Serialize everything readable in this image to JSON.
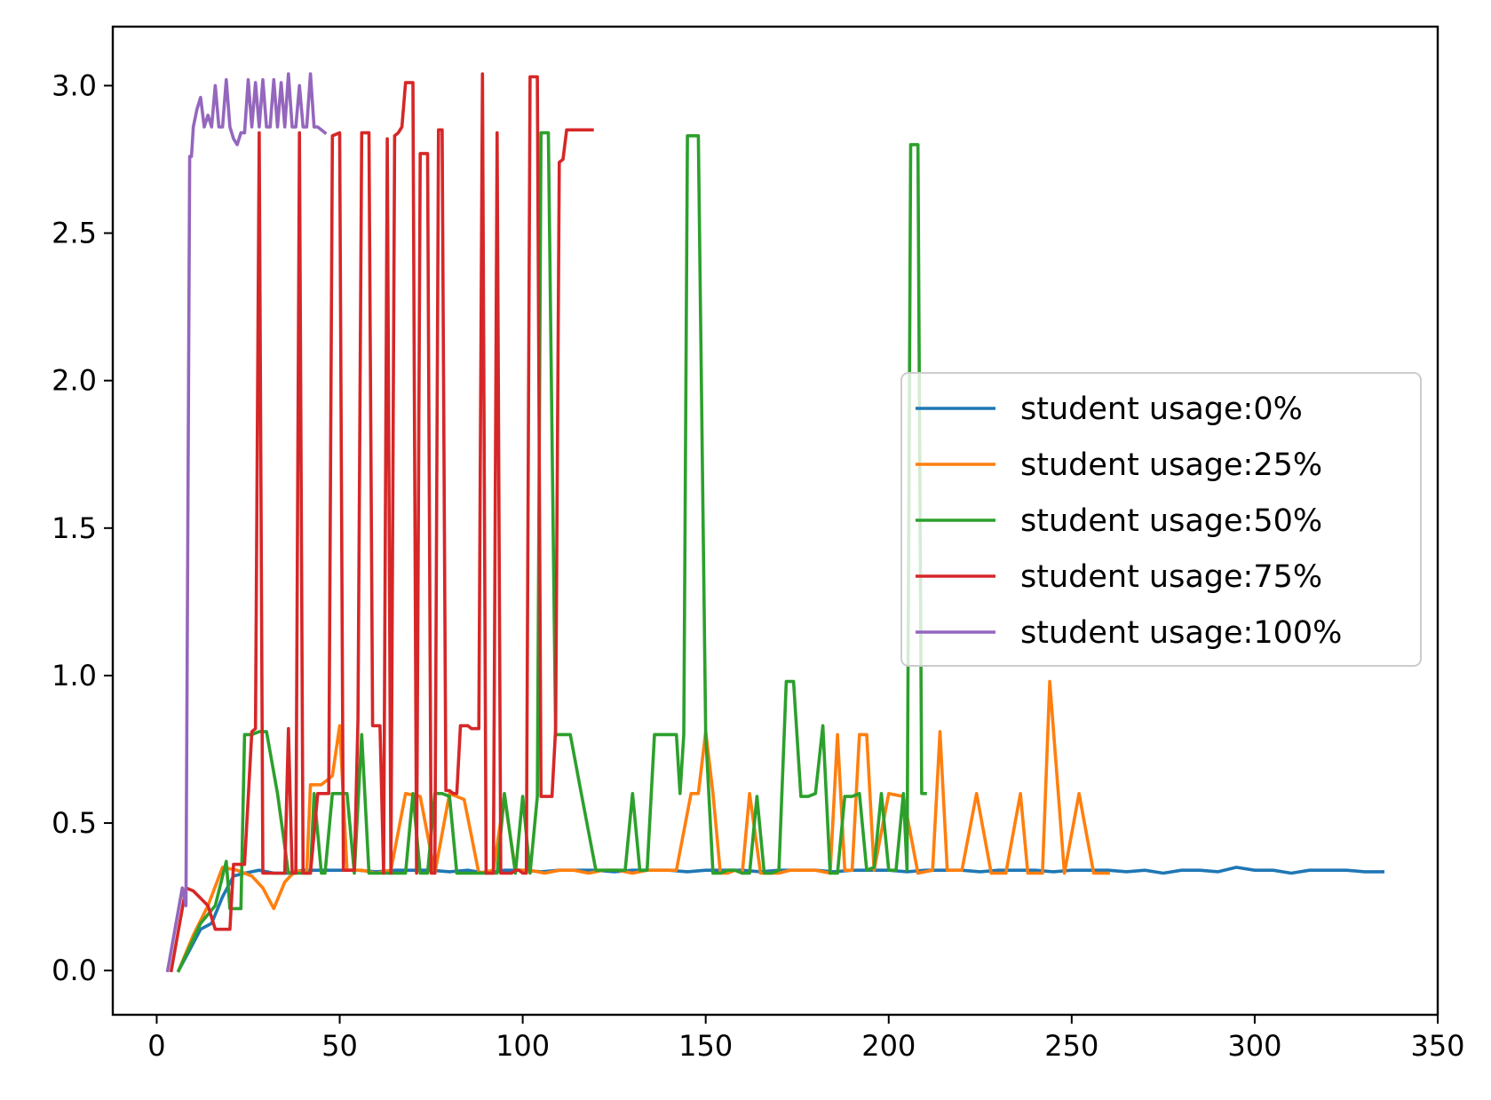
{
  "chart_data": {
    "type": "line",
    "title": "",
    "xlabel": "",
    "ylabel": "",
    "xlim": [
      -12,
      350
    ],
    "ylim": [
      -0.15,
      3.2
    ],
    "xticks": [
      0,
      50,
      100,
      150,
      200,
      250,
      300,
      350
    ],
    "xtick_labels": [
      "0",
      "50",
      "100",
      "150",
      "200",
      "250",
      "300",
      "350"
    ],
    "yticks": [
      0.0,
      0.5,
      1.0,
      1.5,
      2.0,
      2.5,
      3.0
    ],
    "ytick_labels": [
      "0.0",
      "0.5",
      "1.0",
      "1.5",
      "2.0",
      "2.5",
      "3.0"
    ],
    "grid": false,
    "legend_position": "center-right",
    "series": [
      {
        "name": "student usage:0%",
        "color": "#1f77b4",
        "x": [
          6,
          9,
          12,
          15,
          18,
          21,
          24,
          28,
          32,
          36,
          40,
          45,
          50,
          55,
          60,
          65,
          70,
          75,
          80,
          85,
          90,
          95,
          100,
          105,
          110,
          115,
          120,
          125,
          130,
          135,
          140,
          145,
          150,
          155,
          160,
          165,
          170,
          175,
          180,
          185,
          190,
          195,
          200,
          205,
          210,
          215,
          220,
          225,
          230,
          235,
          240,
          245,
          250,
          255,
          260,
          265,
          270,
          275,
          280,
          285,
          290,
          295,
          300,
          305,
          310,
          315,
          320,
          325,
          330,
          335
        ],
        "y": [
          0.0,
          0.07,
          0.14,
          0.16,
          0.25,
          0.32,
          0.33,
          0.34,
          0.33,
          0.33,
          0.34,
          0.34,
          0.34,
          0.34,
          0.335,
          0.34,
          0.34,
          0.34,
          0.335,
          0.34,
          0.33,
          0.34,
          0.34,
          0.335,
          0.34,
          0.34,
          0.34,
          0.335,
          0.34,
          0.34,
          0.34,
          0.335,
          0.34,
          0.34,
          0.34,
          0.335,
          0.34,
          0.34,
          0.34,
          0.335,
          0.34,
          0.34,
          0.34,
          0.335,
          0.34,
          0.34,
          0.34,
          0.335,
          0.34,
          0.34,
          0.34,
          0.335,
          0.34,
          0.34,
          0.34,
          0.335,
          0.34,
          0.33,
          0.34,
          0.34,
          0.335,
          0.35,
          0.34,
          0.34,
          0.33,
          0.34,
          0.34,
          0.34,
          0.335,
          0.335
        ]
      },
      {
        "name": "student usage:25%",
        "color": "#ff7f0e",
        "x": [
          6,
          10,
          14,
          18,
          22,
          26,
          29,
          32,
          35,
          38,
          41,
          42,
          45,
          48,
          50,
          52,
          56,
          60,
          64,
          68,
          72,
          76,
          80,
          84,
          88,
          92,
          95,
          98,
          102,
          106,
          110,
          114,
          118,
          122,
          126,
          130,
          134,
          138,
          142,
          146,
          148,
          150,
          152,
          154,
          156,
          158,
          160,
          162,
          165,
          168,
          170,
          173,
          176,
          180,
          184,
          186,
          188,
          190,
          192,
          194,
          196,
          200,
          204,
          208,
          212,
          214,
          216,
          220,
          224,
          228,
          232,
          236,
          238,
          242,
          244,
          248,
          252,
          256,
          260
        ],
        "y": [
          0.0,
          0.12,
          0.22,
          0.35,
          0.34,
          0.32,
          0.28,
          0.21,
          0.3,
          0.34,
          0.33,
          0.63,
          0.63,
          0.66,
          0.83,
          0.34,
          0.34,
          0.33,
          0.34,
          0.6,
          0.59,
          0.33,
          0.6,
          0.58,
          0.33,
          0.34,
          0.59,
          0.34,
          0.34,
          0.33,
          0.34,
          0.34,
          0.33,
          0.34,
          0.34,
          0.33,
          0.34,
          0.34,
          0.34,
          0.6,
          0.6,
          0.81,
          0.6,
          0.33,
          0.33,
          0.34,
          0.33,
          0.6,
          0.33,
          0.33,
          0.33,
          0.34,
          0.34,
          0.34,
          0.33,
          0.8,
          0.34,
          0.34,
          0.8,
          0.8,
          0.34,
          0.6,
          0.59,
          0.33,
          0.34,
          0.81,
          0.34,
          0.34,
          0.6,
          0.33,
          0.33,
          0.6,
          0.33,
          0.33,
          0.98,
          0.33,
          0.6,
          0.33,
          0.33
        ]
      },
      {
        "name": "student usage:50%",
        "color": "#2ca02c",
        "x": [
          6,
          9,
          12,
          16,
          19,
          20,
          23,
          24,
          26,
          28,
          30,
          33,
          36,
          38,
          40,
          42,
          43,
          45,
          46,
          48,
          50,
          52,
          54,
          56,
          58,
          60,
          62,
          64,
          66,
          68,
          70,
          72,
          74,
          76,
          78,
          80,
          82,
          85,
          88,
          90,
          93,
          95,
          98,
          100,
          102,
          104,
          105,
          107,
          109,
          111,
          113,
          116,
          120,
          124,
          128,
          130,
          132,
          134,
          136,
          138,
          140,
          141,
          142,
          143,
          144,
          145,
          146,
          148,
          150,
          152,
          154,
          156,
          158,
          160,
          162,
          164,
          166,
          168,
          170,
          172,
          174,
          176,
          178,
          180,
          182,
          184,
          186,
          188,
          190,
          192,
          194,
          196,
          198,
          200,
          202,
          204,
          205,
          206,
          208,
          209,
          210
        ],
        "y": [
          0.0,
          0.08,
          0.16,
          0.22,
          0.37,
          0.21,
          0.21,
          0.8,
          0.8,
          0.81,
          0.81,
          0.6,
          0.33,
          0.33,
          0.33,
          0.33,
          0.6,
          0.33,
          0.33,
          0.6,
          0.6,
          0.6,
          0.33,
          0.8,
          0.33,
          0.33,
          0.33,
          0.33,
          0.33,
          0.33,
          0.6,
          0.33,
          0.33,
          0.6,
          0.6,
          0.59,
          0.33,
          0.33,
          0.33,
          0.33,
          0.33,
          0.6,
          0.33,
          0.59,
          0.33,
          0.59,
          2.84,
          2.84,
          0.8,
          0.8,
          0.8,
          0.6,
          0.34,
          0.34,
          0.34,
          0.6,
          0.34,
          0.34,
          0.8,
          0.8,
          0.8,
          0.8,
          0.8,
          0.6,
          0.8,
          2.83,
          2.83,
          2.83,
          0.8,
          0.33,
          0.33,
          0.34,
          0.34,
          0.33,
          0.33,
          0.59,
          0.33,
          0.33,
          0.34,
          0.98,
          0.98,
          0.59,
          0.59,
          0.6,
          0.83,
          0.33,
          0.33,
          0.59,
          0.59,
          0.6,
          0.34,
          0.35,
          0.6,
          0.34,
          0.34,
          0.6,
          0.34,
          2.8,
          2.8,
          0.6,
          0.6
        ]
      },
      {
        "name": "student usage:75%",
        "color": "#d62728",
        "x": [
          4,
          8,
          10,
          14,
          16,
          20,
          21,
          24,
          26,
          27,
          28,
          29,
          30,
          33,
          35,
          36,
          37,
          38,
          39,
          40,
          41,
          42,
          44,
          46,
          47,
          48,
          50,
          51,
          52,
          53,
          54,
          55,
          56,
          57,
          58,
          59,
          60,
          61,
          62,
          63,
          64,
          65,
          66,
          67,
          68,
          69,
          70,
          71,
          72,
          73,
          74,
          75,
          76,
          77,
          78,
          79,
          80,
          81,
          82,
          83,
          84,
          85,
          86,
          87,
          88,
          89,
          90,
          91,
          92,
          93,
          94,
          95,
          96,
          97,
          98,
          99,
          100,
          101,
          102,
          103,
          104,
          105,
          106,
          107,
          108,
          109,
          110,
          111,
          112,
          113,
          114,
          115,
          116,
          117,
          118,
          119
        ],
        "y": [
          0.0,
          0.28,
          0.27,
          0.22,
          0.14,
          0.14,
          0.36,
          0.36,
          0.81,
          0.82,
          2.84,
          0.33,
          0.33,
          0.33,
          0.33,
          0.82,
          0.33,
          0.33,
          2.84,
          0.33,
          0.33,
          0.33,
          0.6,
          0.6,
          0.6,
          2.83,
          2.84,
          0.34,
          0.34,
          0.34,
          0.34,
          0.85,
          2.84,
          2.84,
          2.84,
          0.83,
          0.83,
          0.83,
          0.33,
          2.82,
          0.33,
          2.83,
          2.84,
          2.86,
          3.01,
          3.01,
          3.01,
          0.33,
          2.77,
          2.77,
          2.77,
          0.33,
          0.33,
          2.85,
          2.85,
          0.61,
          0.61,
          0.6,
          0.6,
          0.83,
          0.83,
          0.83,
          0.82,
          0.82,
          0.82,
          3.04,
          0.33,
          0.33,
          0.33,
          2.84,
          0.33,
          0.33,
          0.33,
          0.33,
          0.34,
          0.34,
          0.33,
          0.33,
          3.03,
          3.03,
          3.03,
          0.59,
          0.59,
          0.59,
          0.59,
          0.82,
          2.74,
          2.75,
          2.85,
          2.85,
          2.85,
          2.85,
          2.85,
          2.85,
          2.85,
          2.85
        ]
      },
      {
        "name": "student usage:100%",
        "color": "#9467bd",
        "x": [
          3,
          7,
          8,
          9,
          9.5,
          10,
          11,
          12,
          13,
          14,
          15,
          16,
          17,
          18,
          19,
          20,
          21,
          22,
          23,
          24,
          25,
          26,
          27,
          28,
          29,
          30,
          31,
          32,
          33,
          34,
          35,
          36,
          37,
          38,
          39,
          40,
          41,
          42,
          43,
          44,
          45,
          46
        ],
        "y": [
          0.0,
          0.28,
          0.22,
          2.76,
          2.76,
          2.86,
          2.92,
          2.96,
          2.86,
          2.9,
          2.86,
          3.0,
          2.86,
          2.86,
          3.02,
          2.86,
          2.82,
          2.8,
          2.84,
          2.84,
          3.02,
          2.86,
          3.01,
          2.86,
          3.02,
          2.86,
          2.86,
          3.02,
          2.86,
          3.01,
          2.86,
          3.04,
          2.86,
          2.86,
          3.0,
          2.86,
          2.86,
          3.04,
          2.86,
          2.86,
          2.85,
          2.84
        ]
      }
    ]
  }
}
